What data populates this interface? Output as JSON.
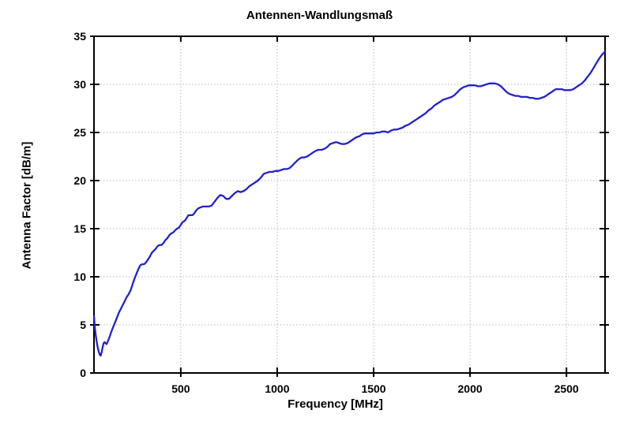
{
  "figure": {
    "background": "#ffffff"
  },
  "chart_data": {
    "type": "line",
    "title": "Antennen-Wandlungsmaß",
    "xlabel": "Frequency [MHz]",
    "ylabel": "Antenna Factor [dB/m]",
    "xlim": [
      50,
      2700
    ],
    "ylim": [
      0,
      35
    ],
    "xticks": [
      500,
      1000,
      1500,
      2000,
      2500
    ],
    "yticks": [
      0,
      5,
      10,
      15,
      20,
      25,
      30,
      35
    ],
    "grid": "dotted",
    "grid_color": "#b8b8b8",
    "axis_color": "#000000",
    "legend": "none",
    "series": [
      {
        "name": "Antenna Factor",
        "color": "#2222cc",
        "points": [
          [
            50,
            5.9
          ],
          [
            55,
            4.6
          ],
          [
            60,
            3.8
          ],
          [
            65,
            3.1
          ],
          [
            70,
            2.6
          ],
          [
            75,
            2.2
          ],
          [
            80,
            1.9
          ],
          [
            85,
            1.8
          ],
          [
            90,
            2.2
          ],
          [
            95,
            2.7
          ],
          [
            100,
            3.1
          ],
          [
            105,
            3.2
          ],
          [
            110,
            3.1
          ],
          [
            115,
            3.0
          ],
          [
            120,
            3.2
          ],
          [
            130,
            3.7
          ],
          [
            140,
            4.3
          ],
          [
            150,
            4.8
          ],
          [
            160,
            5.3
          ],
          [
            170,
            5.8
          ],
          [
            180,
            6.3
          ],
          [
            190,
            6.7
          ],
          [
            200,
            7.1
          ],
          [
            210,
            7.5
          ],
          [
            220,
            7.9
          ],
          [
            230,
            8.2
          ],
          [
            240,
            8.6
          ],
          [
            250,
            9.2
          ],
          [
            260,
            9.8
          ],
          [
            270,
            10.3
          ],
          [
            280,
            10.8
          ],
          [
            290,
            11.2
          ],
          [
            300,
            11.3
          ],
          [
            310,
            11.3
          ],
          [
            320,
            11.5
          ],
          [
            330,
            11.8
          ],
          [
            340,
            12.1
          ],
          [
            350,
            12.5
          ],
          [
            360,
            12.7
          ],
          [
            370,
            12.9
          ],
          [
            380,
            13.2
          ],
          [
            390,
            13.3
          ],
          [
            400,
            13.3
          ],
          [
            410,
            13.5
          ],
          [
            420,
            13.8
          ],
          [
            430,
            14.0
          ],
          [
            440,
            14.3
          ],
          [
            450,
            14.5
          ],
          [
            460,
            14.6
          ],
          [
            470,
            14.8
          ],
          [
            480,
            15.0
          ],
          [
            490,
            15.1
          ],
          [
            500,
            15.4
          ],
          [
            510,
            15.7
          ],
          [
            520,
            15.8
          ],
          [
            530,
            16.1
          ],
          [
            540,
            16.4
          ],
          [
            550,
            16.4
          ],
          [
            560,
            16.4
          ],
          [
            570,
            16.6
          ],
          [
            580,
            16.9
          ],
          [
            590,
            17.1
          ],
          [
            600,
            17.2
          ],
          [
            615,
            17.3
          ],
          [
            630,
            17.3
          ],
          [
            645,
            17.3
          ],
          [
            660,
            17.4
          ],
          [
            675,
            17.8
          ],
          [
            690,
            18.2
          ],
          [
            705,
            18.5
          ],
          [
            720,
            18.4
          ],
          [
            735,
            18.1
          ],
          [
            750,
            18.1
          ],
          [
            765,
            18.4
          ],
          [
            780,
            18.7
          ],
          [
            795,
            18.9
          ],
          [
            810,
            18.8
          ],
          [
            825,
            18.9
          ],
          [
            840,
            19.1
          ],
          [
            855,
            19.4
          ],
          [
            870,
            19.6
          ],
          [
            885,
            19.8
          ],
          [
            900,
            20.0
          ],
          [
            915,
            20.3
          ],
          [
            930,
            20.7
          ],
          [
            945,
            20.8
          ],
          [
            960,
            20.9
          ],
          [
            975,
            20.9
          ],
          [
            990,
            21.0
          ],
          [
            1005,
            21.0
          ],
          [
            1020,
            21.1
          ],
          [
            1035,
            21.2
          ],
          [
            1050,
            21.2
          ],
          [
            1065,
            21.3
          ],
          [
            1080,
            21.6
          ],
          [
            1095,
            21.9
          ],
          [
            1110,
            22.2
          ],
          [
            1125,
            22.4
          ],
          [
            1140,
            22.4
          ],
          [
            1155,
            22.5
          ],
          [
            1170,
            22.7
          ],
          [
            1185,
            22.9
          ],
          [
            1200,
            23.1
          ],
          [
            1215,
            23.2
          ],
          [
            1230,
            23.2
          ],
          [
            1245,
            23.3
          ],
          [
            1260,
            23.5
          ],
          [
            1275,
            23.8
          ],
          [
            1290,
            23.9
          ],
          [
            1305,
            24.0
          ],
          [
            1320,
            23.9
          ],
          [
            1335,
            23.8
          ],
          [
            1350,
            23.8
          ],
          [
            1365,
            23.9
          ],
          [
            1380,
            24.1
          ],
          [
            1395,
            24.3
          ],
          [
            1410,
            24.5
          ],
          [
            1425,
            24.6
          ],
          [
            1440,
            24.8
          ],
          [
            1455,
            24.9
          ],
          [
            1470,
            24.9
          ],
          [
            1485,
            24.9
          ],
          [
            1500,
            24.9
          ],
          [
            1515,
            25.0
          ],
          [
            1530,
            25.0
          ],
          [
            1545,
            25.1
          ],
          [
            1560,
            25.1
          ],
          [
            1575,
            25.0
          ],
          [
            1590,
            25.2
          ],
          [
            1605,
            25.3
          ],
          [
            1620,
            25.3
          ],
          [
            1635,
            25.4
          ],
          [
            1650,
            25.5
          ],
          [
            1665,
            25.7
          ],
          [
            1680,
            25.8
          ],
          [
            1695,
            26.0
          ],
          [
            1710,
            26.2
          ],
          [
            1725,
            26.4
          ],
          [
            1740,
            26.6
          ],
          [
            1755,
            26.8
          ],
          [
            1770,
            27.0
          ],
          [
            1785,
            27.3
          ],
          [
            1800,
            27.5
          ],
          [
            1815,
            27.8
          ],
          [
            1830,
            28.0
          ],
          [
            1845,
            28.2
          ],
          [
            1860,
            28.4
          ],
          [
            1875,
            28.5
          ],
          [
            1890,
            28.6
          ],
          [
            1905,
            28.7
          ],
          [
            1920,
            28.9
          ],
          [
            1935,
            29.2
          ],
          [
            1950,
            29.5
          ],
          [
            1965,
            29.7
          ],
          [
            1980,
            29.8
          ],
          [
            1995,
            29.9
          ],
          [
            2010,
            29.9
          ],
          [
            2025,
            29.9
          ],
          [
            2040,
            29.8
          ],
          [
            2055,
            29.8
          ],
          [
            2070,
            29.9
          ],
          [
            2085,
            30.0
          ],
          [
            2100,
            30.1
          ],
          [
            2115,
            30.1
          ],
          [
            2130,
            30.1
          ],
          [
            2145,
            30.0
          ],
          [
            2160,
            29.8
          ],
          [
            2175,
            29.5
          ],
          [
            2190,
            29.2
          ],
          [
            2205,
            29.0
          ],
          [
            2220,
            28.9
          ],
          [
            2235,
            28.8
          ],
          [
            2250,
            28.8
          ],
          [
            2265,
            28.7
          ],
          [
            2280,
            28.7
          ],
          [
            2295,
            28.7
          ],
          [
            2310,
            28.6
          ],
          [
            2325,
            28.6
          ],
          [
            2340,
            28.5
          ],
          [
            2355,
            28.5
          ],
          [
            2370,
            28.6
          ],
          [
            2385,
            28.7
          ],
          [
            2400,
            28.9
          ],
          [
            2415,
            29.1
          ],
          [
            2430,
            29.3
          ],
          [
            2445,
            29.5
          ],
          [
            2460,
            29.5
          ],
          [
            2475,
            29.5
          ],
          [
            2490,
            29.4
          ],
          [
            2505,
            29.4
          ],
          [
            2520,
            29.4
          ],
          [
            2535,
            29.5
          ],
          [
            2550,
            29.7
          ],
          [
            2565,
            29.9
          ],
          [
            2580,
            30.1
          ],
          [
            2595,
            30.4
          ],
          [
            2610,
            30.8
          ],
          [
            2625,
            31.2
          ],
          [
            2640,
            31.7
          ],
          [
            2655,
            32.2
          ],
          [
            2670,
            32.7
          ],
          [
            2685,
            33.1
          ],
          [
            2700,
            33.4
          ]
        ]
      }
    ]
  }
}
